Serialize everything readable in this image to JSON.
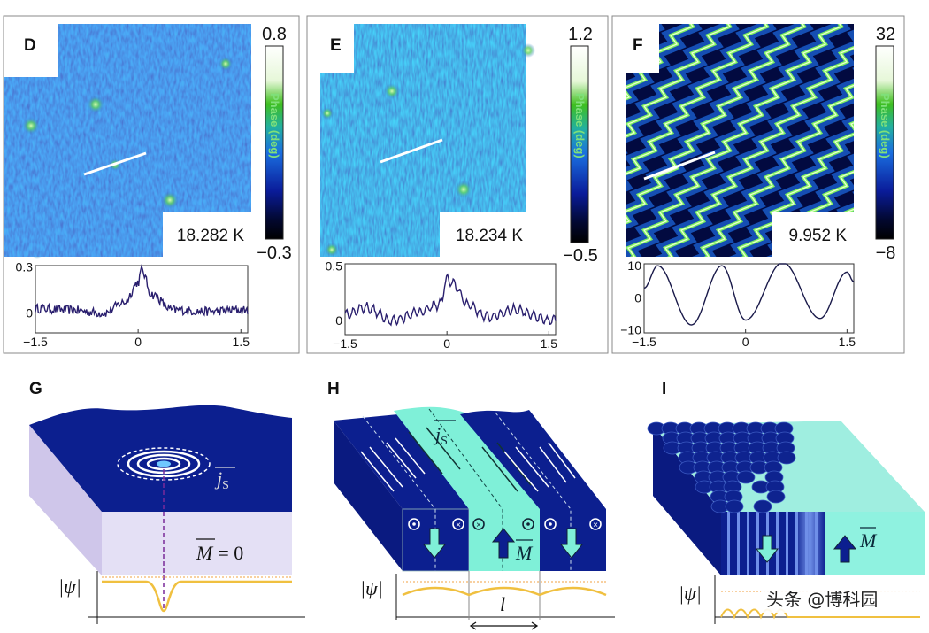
{
  "colors": {
    "map_blue": "#1f4fd6",
    "navy": "#0a1a8c",
    "cyan": "#7ff0d8",
    "lavender": "#e4e0f5",
    "profile": "#2a1f6e",
    "psi_line": "#f0c040"
  },
  "panels": [
    {
      "letter": "D",
      "colorbar_max": "0.8",
      "colorbar_min": "−0.3",
      "colorbar_label": "Phase (deg)",
      "temperature": "18.282 K"
    },
    {
      "letter": "E",
      "colorbar_max": "1.2",
      "colorbar_min": "−0.5",
      "colorbar_label": "Phase (deg)",
      "temperature": "18.234 K"
    },
    {
      "letter": "F",
      "colorbar_max": "32",
      "colorbar_min": "−8",
      "colorbar_label": "Phase (deg)",
      "temperature": "9.952 K"
    }
  ],
  "chart_data": [
    {
      "type": "line",
      "panel": "D",
      "xlim": [
        -1.5,
        1.6
      ],
      "ylim": [
        -0.13,
        0.31
      ],
      "x_ticks": [
        "−1.5",
        "0",
        "1.5"
      ],
      "y_ticks": [
        "0",
        "0.3"
      ],
      "x": [
        -1.5,
        -1.0,
        -0.5,
        -0.2,
        0,
        0.05,
        0.2,
        0.5,
        1.0,
        1.5
      ],
      "y": [
        0.03,
        0.02,
        0.0,
        0.07,
        0.2,
        0.28,
        0.12,
        0.02,
        0.01,
        0.02
      ]
    },
    {
      "type": "line",
      "panel": "E",
      "xlim": [
        -1.5,
        1.6
      ],
      "ylim": [
        -0.13,
        0.52
      ],
      "x_ticks": [
        "−1.5",
        "0",
        "1.5"
      ],
      "y_ticks": [
        "0",
        "0.5"
      ],
      "x": [
        -1.5,
        -1.2,
        -0.8,
        -0.4,
        -0.1,
        0,
        0.1,
        0.3,
        0.6,
        1.0,
        1.5
      ],
      "y": [
        0.05,
        0.12,
        0.0,
        0.08,
        0.15,
        0.38,
        0.33,
        0.15,
        0.03,
        0.1,
        0.0
      ]
    },
    {
      "type": "line",
      "panel": "F",
      "xlim": [
        -1.5,
        1.6
      ],
      "ylim": [
        -11,
        10.6
      ],
      "x_ticks": [
        "−1.5",
        "0",
        "1.5"
      ],
      "y_ticks": [
        "10",
        "0",
        "−10"
      ],
      "x": [
        -1.5,
        -1.3,
        -0.8,
        -0.35,
        0,
        0.55,
        1.1,
        1.5,
        1.6
      ],
      "y": [
        3,
        10,
        -8.5,
        10,
        -7,
        11,
        -6.5,
        8,
        5
      ]
    }
  ],
  "diagrams": {
    "G": {
      "letter": "G",
      "current_label": "j",
      "current_sub": "S",
      "magnetization": "M",
      "mag_value": "= 0",
      "psi_label": "|ψ|"
    },
    "H": {
      "letter": "H",
      "current_label": "j",
      "current_sub": "S",
      "magnetization": "M",
      "psi_label": "|ψ|",
      "length_label": "l"
    },
    "I": {
      "letter": "I",
      "magnetization": "M",
      "psi_label": "|ψ|"
    }
  },
  "watermark": "头条 @博科园"
}
